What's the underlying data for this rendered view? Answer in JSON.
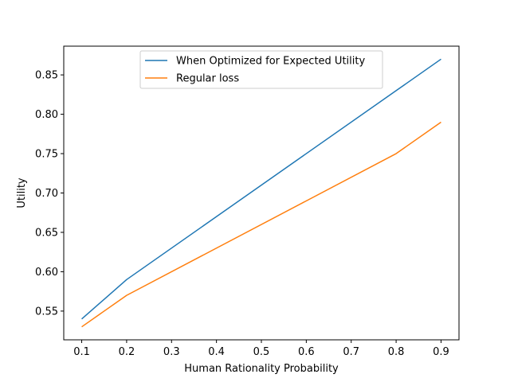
{
  "chart_data": {
    "type": "line",
    "title": "",
    "xlabel": "Human Rationality Probability",
    "ylabel": "Utility",
    "x": [
      0.1,
      0.2,
      0.8,
      0.9
    ],
    "xticks": [
      "0.1",
      "0.2",
      "0.3",
      "0.4",
      "0.5",
      "0.6",
      "0.7",
      "0.8",
      "0.9"
    ],
    "yticks": [
      "0.55",
      "0.60",
      "0.65",
      "0.70",
      "0.75",
      "0.80",
      "0.85"
    ],
    "xlim": [
      0.06,
      0.94
    ],
    "ylim": [
      0.5135,
      0.8865
    ],
    "grid": false,
    "legend_position": "upper center",
    "series": [
      {
        "name": "When Optimized for Expected Utility",
        "color": "#1f77b4",
        "values": [
          0.54,
          0.59,
          0.83,
          0.87
        ]
      },
      {
        "name": "Regular loss",
        "color": "#ff7f0e",
        "values": [
          0.53,
          0.57,
          0.75,
          0.79
        ]
      }
    ]
  }
}
